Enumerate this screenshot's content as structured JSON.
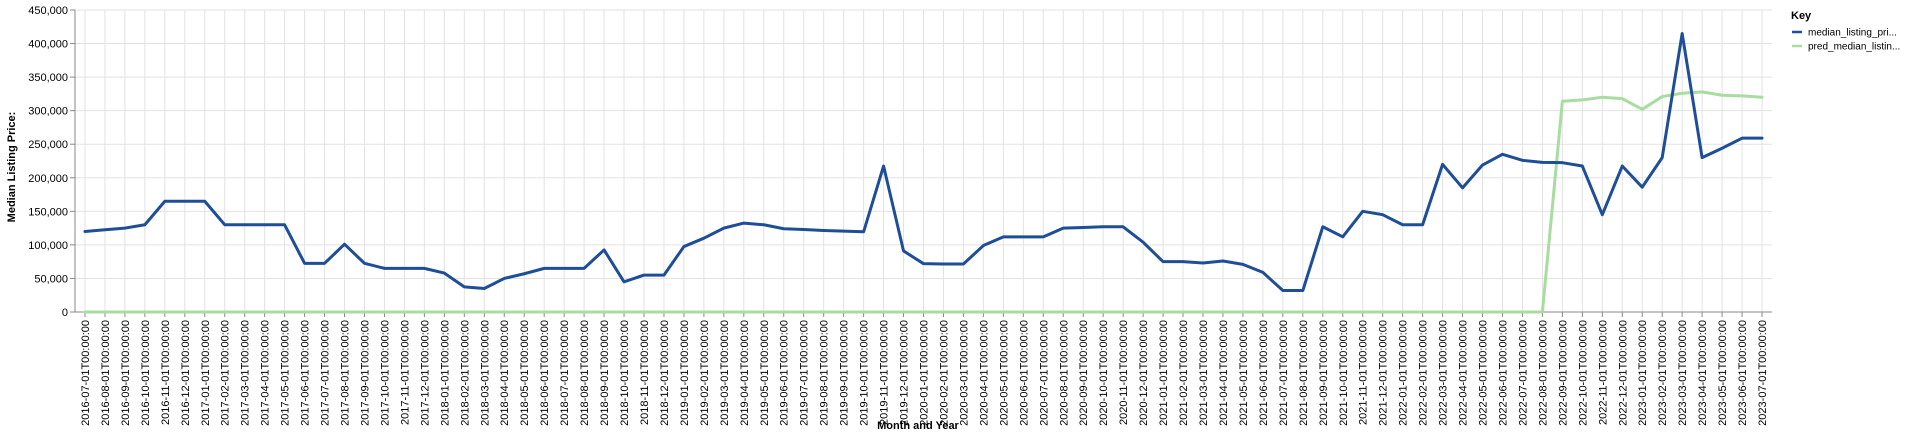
{
  "chart_data": {
    "type": "line",
    "xlabel": "Month and Year",
    "ylabel": "Median Listing Price:",
    "ylim": [
      0,
      450000
    ],
    "yticks": [
      "0",
      "50,000",
      "100,000",
      "150,000",
      "200,000",
      "250,000",
      "300,000",
      "350,000",
      "400,000",
      "450,000"
    ],
    "grid": true,
    "legend": {
      "title": "Key",
      "position": "top-right"
    },
    "x": [
      "2016-07-01T00:00:00",
      "2016-08-01T00:00:00",
      "2016-09-01T00:00:00",
      "2016-10-01T00:00:00",
      "2016-11-01T00:00:00",
      "2016-12-01T00:00:00",
      "2017-01-01T00:00:00",
      "2017-02-01T00:00:00",
      "2017-03-01T00:00:00",
      "2017-04-01T00:00:00",
      "2017-05-01T00:00:00",
      "2017-06-01T00:00:00",
      "2017-07-01T00:00:00",
      "2017-08-01T00:00:00",
      "2017-09-01T00:00:00",
      "2017-10-01T00:00:00",
      "2017-11-01T00:00:00",
      "2017-12-01T00:00:00",
      "2018-01-01T00:00:00",
      "2018-02-01T00:00:00",
      "2018-03-01T00:00:00",
      "2018-04-01T00:00:00",
      "2018-05-01T00:00:00",
      "2018-06-01T00:00:00",
      "2018-07-01T00:00:00",
      "2018-08-01T00:00:00",
      "2018-09-01T00:00:00",
      "2018-10-01T00:00:00",
      "2018-11-01T00:00:00",
      "2018-12-01T00:00:00",
      "2019-01-01T00:00:00",
      "2019-02-01T00:00:00",
      "2019-03-01T00:00:00",
      "2019-04-01T00:00:00",
      "2019-05-01T00:00:00",
      "2019-06-01T00:00:00",
      "2019-07-01T00:00:00",
      "2019-08-01T00:00:00",
      "2019-09-01T00:00:00",
      "2019-10-01T00:00:00",
      "2019-11-01T00:00:00",
      "2019-12-01T00:00:00",
      "2020-01-01T00:00:00",
      "2020-02-01T00:00:00",
      "2020-03-01T00:00:00",
      "2020-04-01T00:00:00",
      "2020-05-01T00:00:00",
      "2020-06-01T00:00:00",
      "2020-07-01T00:00:00",
      "2020-08-01T00:00:00",
      "2020-09-01T00:00:00",
      "2020-10-01T00:00:00",
      "2020-11-01T00:00:00",
      "2020-12-01T00:00:00",
      "2021-01-01T00:00:00",
      "2021-02-01T00:00:00",
      "2021-03-01T00:00:00",
      "2021-04-01T00:00:00",
      "2021-05-01T00:00:00",
      "2021-06-01T00:00:00",
      "2021-07-01T00:00:00",
      "2021-08-01T00:00:00",
      "2021-09-01T00:00:00",
      "2021-10-01T00:00:00",
      "2021-11-01T00:00:00",
      "2021-12-01T00:00:00",
      "2022-01-01T00:00:00",
      "2022-02-01T00:00:00",
      "2022-03-01T00:00:00",
      "2022-04-01T00:00:00",
      "2022-05-01T00:00:00",
      "2022-06-01T00:00:00",
      "2022-07-01T00:00:00",
      "2022-08-01T00:00:00",
      "2022-09-01T00:00:00",
      "2022-10-01T00:00:00",
      "2022-11-01T00:00:00",
      "2022-12-01T00:00:00",
      "2023-01-01T00:00:00",
      "2023-02-01T00:00:00",
      "2023-03-01T00:00:00",
      "2023-04-01T00:00:00",
      "2023-05-01T00:00:00",
      "2023-06-01T00:00:00",
      "2023-07-01T00:00:00"
    ],
    "series": [
      {
        "name": "median_listing_pri...",
        "color": "#1f4e99",
        "values": [
          120000,
          122500,
          125000,
          130000,
          165000,
          165000,
          165000,
          130000,
          130000,
          130000,
          130000,
          72500,
          72500,
          101000,
          72500,
          65000,
          65000,
          65000,
          58000,
          37500,
          35000,
          50000,
          57000,
          65000,
          65000,
          65000,
          92500,
          45000,
          55000,
          55000,
          97500,
          110000,
          125000,
          132500,
          130000,
          124000,
          123000,
          121500,
          120500,
          119500,
          217500,
          91000,
          72000,
          71500,
          71500,
          99000,
          112000,
          112000,
          112000,
          125000,
          126000,
          127000,
          127000,
          104000,
          75000,
          75000,
          73000,
          76000,
          71000,
          59000,
          32000,
          32000,
          127000,
          112000,
          150000,
          145000,
          130000,
          130000,
          220000,
          185000,
          219000,
          235000,
          226000,
          223000,
          222500,
          217500,
          145000,
          217500,
          186000,
          230000,
          415000,
          230000,
          244000,
          259000,
          259000
        ]
      },
      {
        "name": "pred_median_listin...",
        "color": "#a8dca0",
        "values": [
          0,
          0,
          0,
          0,
          0,
          0,
          0,
          0,
          0,
          0,
          0,
          0,
          0,
          0,
          0,
          0,
          0,
          0,
          0,
          0,
          0,
          0,
          0,
          0,
          0,
          0,
          0,
          0,
          0,
          0,
          0,
          0,
          0,
          0,
          0,
          0,
          0,
          0,
          0,
          0,
          0,
          0,
          0,
          0,
          0,
          0,
          0,
          0,
          0,
          0,
          0,
          0,
          0,
          0,
          0,
          0,
          0,
          0,
          0,
          0,
          0,
          0,
          0,
          0,
          0,
          0,
          0,
          0,
          0,
          0,
          0,
          0,
          0,
          0,
          314000,
          316000,
          320000,
          318000,
          302000,
          321000,
          326000,
          328000,
          323000,
          322000,
          320000
        ]
      }
    ]
  }
}
